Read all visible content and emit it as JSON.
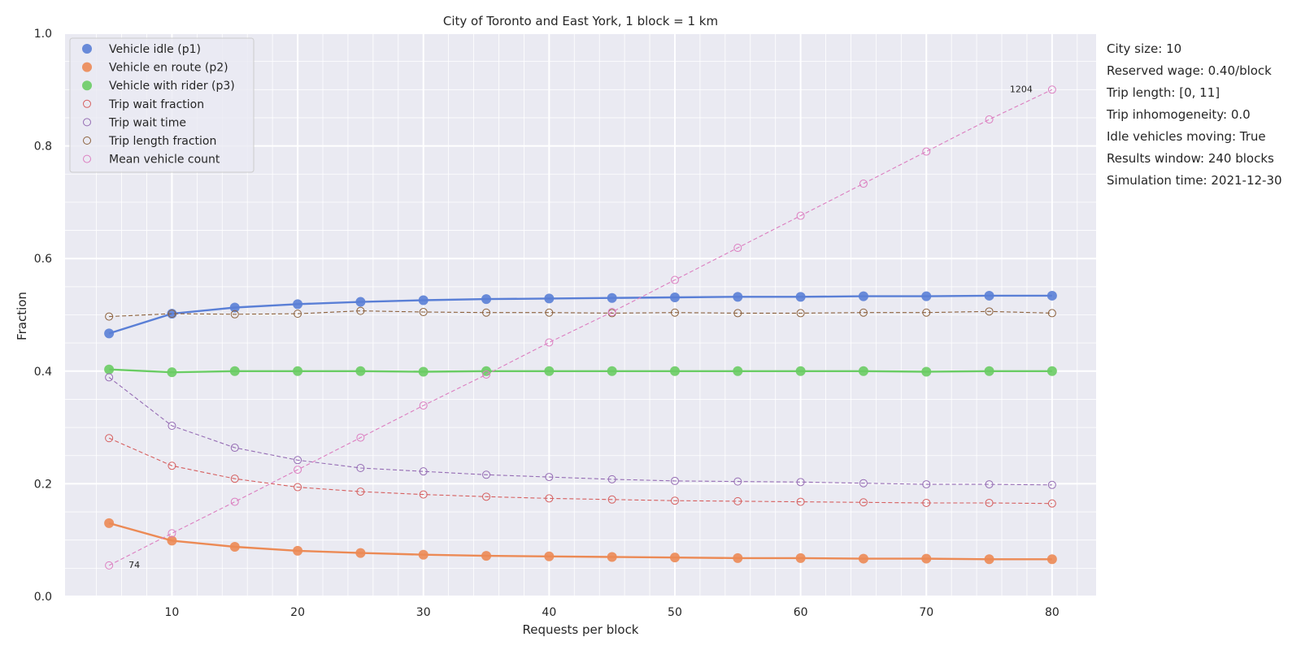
{
  "chart_data": {
    "type": "line",
    "title": "City of Toronto and East York, 1 block = 1 km",
    "xlabel": "Requests per block",
    "ylabel": "Fraction",
    "xlim": [
      1.5,
      83.5
    ],
    "ylim": [
      0,
      1
    ],
    "x_ticks": [
      10,
      20,
      30,
      40,
      50,
      60,
      70,
      80
    ],
    "y_ticks": [
      0.0,
      0.2,
      0.4,
      0.6,
      0.8,
      1.0
    ],
    "x_tick_labels": [
      "10",
      "20",
      "30",
      "40",
      "50",
      "60",
      "70",
      "80"
    ],
    "y_tick_labels": [
      "0.0",
      "0.2",
      "0.4",
      "0.6",
      "0.8",
      "1.0"
    ],
    "grid": true,
    "legend_position": "top-left",
    "x": [
      5,
      10,
      15,
      20,
      25,
      30,
      35,
      40,
      45,
      50,
      55,
      60,
      65,
      70,
      75,
      80
    ],
    "series": [
      {
        "name": "Vehicle idle (p1)",
        "color": "#5a7fd6",
        "marker": "filled",
        "line": "solid",
        "values": [
          0.467,
          0.502,
          0.513,
          0.519,
          0.523,
          0.526,
          0.528,
          0.529,
          0.53,
          0.531,
          0.532,
          0.532,
          0.533,
          0.533,
          0.534,
          0.534
        ]
      },
      {
        "name": "Vehicle en route (p2)",
        "color": "#ec8a55",
        "marker": "filled",
        "line": "solid",
        "values": [
          0.13,
          0.099,
          0.088,
          0.081,
          0.077,
          0.074,
          0.072,
          0.071,
          0.07,
          0.069,
          0.068,
          0.068,
          0.067,
          0.067,
          0.066,
          0.066
        ]
      },
      {
        "name": "Vehicle with rider (p3)",
        "color": "#6acc64",
        "marker": "filled",
        "line": "solid",
        "values": [
          0.403,
          0.398,
          0.4,
          0.4,
          0.4,
          0.399,
          0.4,
          0.4,
          0.4,
          0.4,
          0.4,
          0.4,
          0.4,
          0.399,
          0.4,
          0.4
        ]
      },
      {
        "name": "Trip wait fraction",
        "color": "#d65f5f",
        "marker": "open",
        "line": "dashed",
        "values": [
          0.281,
          0.232,
          0.209,
          0.194,
          0.186,
          0.181,
          0.177,
          0.174,
          0.172,
          0.17,
          0.169,
          0.168,
          0.167,
          0.166,
          0.166,
          0.165
        ]
      },
      {
        "name": "Trip wait time",
        "color": "#956cb4",
        "marker": "open",
        "line": "dashed",
        "values": [
          0.389,
          0.303,
          0.264,
          0.242,
          0.228,
          0.222,
          0.216,
          0.212,
          0.208,
          0.205,
          0.204,
          0.203,
          0.201,
          0.199,
          0.199,
          0.198
        ]
      },
      {
        "name": "Trip length fraction",
        "color": "#8c613c",
        "marker": "open",
        "line": "dashed",
        "values": [
          0.497,
          0.502,
          0.501,
          0.502,
          0.507,
          0.505,
          0.504,
          0.504,
          0.503,
          0.504,
          0.503,
          0.503,
          0.504,
          0.504,
          0.506,
          0.503
        ]
      },
      {
        "name": "Mean vehicle count",
        "color": "#dc7ec0",
        "marker": "open",
        "line": "dashed",
        "values": [
          0.055,
          0.112,
          0.168,
          0.225,
          0.282,
          0.339,
          0.394,
          0.451,
          0.505,
          0.562,
          0.619,
          0.676,
          0.733,
          0.79,
          0.847,
          0.9
        ]
      }
    ],
    "annotations": [
      {
        "text": "74",
        "x": 5,
        "y": 0.055
      },
      {
        "text": "1204",
        "x": 80,
        "y": 0.9
      }
    ]
  },
  "side_panel": {
    "lines": [
      "City size: 10",
      "Reserved wage: 0.40/block",
      "Trip length: [0, 11]",
      "Trip inhomogeneity: 0.0",
      "Idle vehicles moving: True",
      "Results window: 240 blocks",
      "Simulation time: 2021-12-30"
    ]
  },
  "colors": {
    "plot_background": "#eaeaf2",
    "grid": "#ffffff",
    "text": "#262626"
  }
}
